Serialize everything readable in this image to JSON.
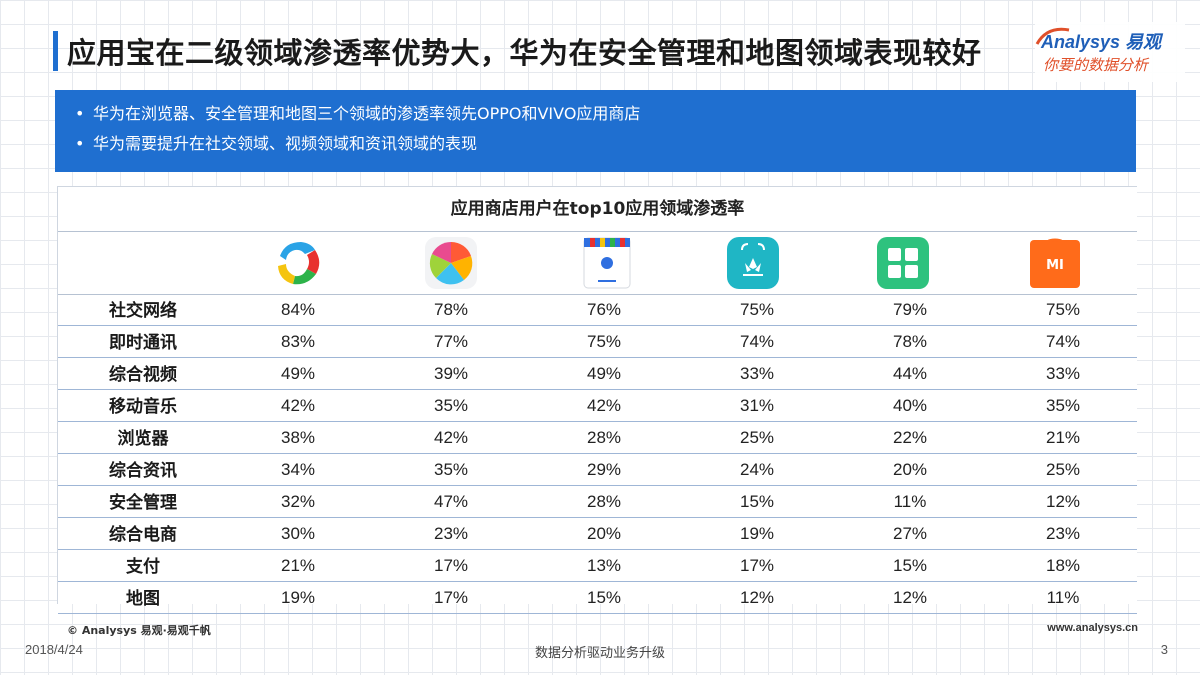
{
  "header": {
    "title": "应用宝在二级领域渗透率优势大，华为在安全管理和地图领域表现较好",
    "logo_main": "Analysys 易观",
    "logo_sub": "你要的数据分析"
  },
  "summary": {
    "bullets": [
      "华为在浏览器、安全管理和地图三个领域的渗透率领先OPPO和VIVO应用商店",
      "华为需要提升在社交领域、视频领域和资讯领域的表现"
    ]
  },
  "table": {
    "title": "应用商店用户在top10应用领域渗透率",
    "app_icons": [
      "yingyongbao-icon",
      "360-assistant-icon",
      "baidu-assistant-icon",
      "huawei-appgallery-icon",
      "oppo-store-icon",
      "xiaomi-store-icon"
    ],
    "rows": [
      {
        "label": "社交网络",
        "values": [
          "84%",
          "78%",
          "76%",
          "75%",
          "79%",
          "75%"
        ]
      },
      {
        "label": "即时通讯",
        "values": [
          "83%",
          "77%",
          "75%",
          "74%",
          "78%",
          "74%"
        ]
      },
      {
        "label": "综合视频",
        "values": [
          "49%",
          "39%",
          "49%",
          "33%",
          "44%",
          "33%"
        ]
      },
      {
        "label": "移动音乐",
        "values": [
          "42%",
          "35%",
          "42%",
          "31%",
          "40%",
          "35%"
        ]
      },
      {
        "label": "浏览器",
        "values": [
          "38%",
          "42%",
          "28%",
          "25%",
          "22%",
          "21%"
        ]
      },
      {
        "label": "综合资讯",
        "values": [
          "34%",
          "35%",
          "29%",
          "24%",
          "20%",
          "25%"
        ]
      },
      {
        "label": "安全管理",
        "values": [
          "32%",
          "47%",
          "28%",
          "15%",
          "11%",
          "12%"
        ]
      },
      {
        "label": "综合电商",
        "values": [
          "30%",
          "23%",
          "20%",
          "19%",
          "27%",
          "23%"
        ]
      },
      {
        "label": "支付",
        "values": [
          "21%",
          "17%",
          "13%",
          "17%",
          "15%",
          "18%"
        ]
      },
      {
        "label": "地图",
        "values": [
          "19%",
          "17%",
          "15%",
          "12%",
          "12%",
          "11%"
        ]
      }
    ]
  },
  "footer": {
    "copyright": "© Analysys 易观·易观千帆",
    "url": "www.analysys.cn",
    "date": "2018/4/24",
    "slogan": "数据分析驱动业务升级",
    "page": "3"
  },
  "colors": {
    "accent": "#1f6fd0",
    "logo_blue": "#1f5fb8",
    "logo_orange": "#e0502a"
  }
}
